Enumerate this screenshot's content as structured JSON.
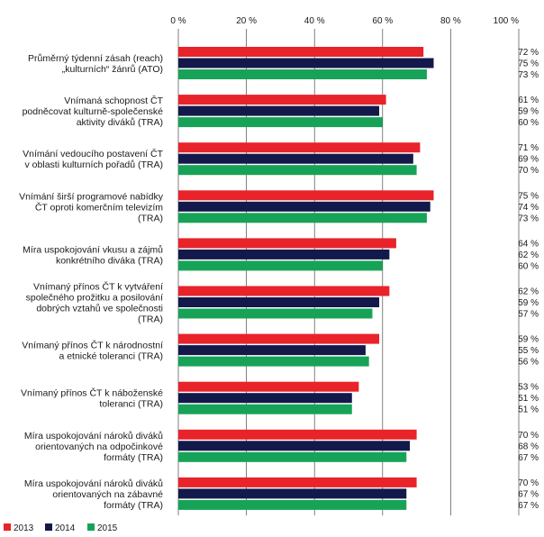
{
  "chart_data": {
    "type": "bar",
    "orientation": "horizontal",
    "title": "",
    "xlabel": "",
    "ylabel": "",
    "xlim": [
      0,
      100
    ],
    "ticks": [
      0,
      20,
      40,
      60,
      80,
      100
    ],
    "tick_labels": [
      "0 %",
      "20 %",
      "40 %",
      "60 %",
      "80 %",
      "100 %"
    ],
    "value_suffix": " %",
    "legend_position": "bottom-left",
    "categories": [
      {
        "lines": [
          "Průměrný týdenní zásah (reach)",
          "„kulturních“ žánrů (ATO)"
        ]
      },
      {
        "lines": [
          "Vnímaná schopnost ČT",
          "podněcovat kulturně-společenské",
          "aktivity diváků (TRA)"
        ]
      },
      {
        "lines": [
          "Vnímání vedoucího postavení ČT",
          "v oblasti kulturních pořadů (TRA)"
        ]
      },
      {
        "lines": [
          "Vnímání širší programové nabídky",
          "ČT oproti komerčním televizím",
          "(TRA)"
        ]
      },
      {
        "lines": [
          "Míra uspokojování vkusu a zájmů",
          "konkrétního diváka (TRA)"
        ]
      },
      {
        "lines": [
          "Vnímaný přínos ČT k vytváření",
          "společného prožitku a posilování",
          "dobrých vztahů ve společnosti",
          "(TRA)"
        ]
      },
      {
        "lines": [
          "Vnímaný přínos ČT k národnostní",
          "a etnické toleranci (TRA)"
        ]
      },
      {
        "lines": [
          "Vnímaný přínos ČT k náboženské",
          "toleranci (TRA)"
        ]
      },
      {
        "lines": [
          "Míra uspokojování nároků diváků",
          "orientovaných na odpočinkové",
          "formáty (TRA)"
        ]
      },
      {
        "lines": [
          "Míra uspokojování nároků diváků",
          "orientovaných na zábavné",
          "formáty (TRA)"
        ]
      }
    ],
    "series": [
      {
        "name": "2013",
        "color": "#e8232a",
        "values": [
          72,
          61,
          71,
          75,
          64,
          62,
          59,
          53,
          70,
          70
        ]
      },
      {
        "name": "2014",
        "color": "#14194b",
        "values": [
          75,
          59,
          69,
          74,
          62,
          59,
          55,
          51,
          68,
          67
        ]
      },
      {
        "name": "2015",
        "color": "#17a357",
        "values": [
          73,
          60,
          70,
          73,
          60,
          57,
          56,
          51,
          67,
          67
        ]
      }
    ]
  }
}
